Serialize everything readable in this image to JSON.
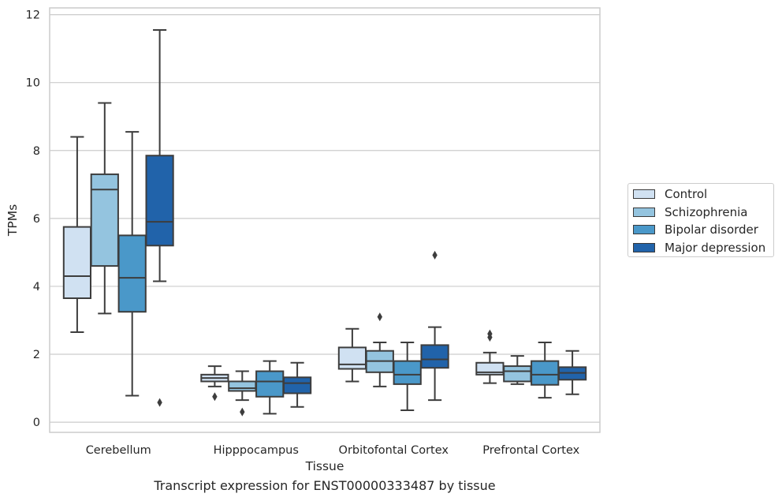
{
  "chart_data": {
    "type": "boxplot",
    "title": "",
    "caption": "Transcript expression for ENST00000333487 by tissue",
    "xlabel": "Tissue",
    "ylabel": "TPMs",
    "ylim": [
      -0.3,
      12.2
    ],
    "yticks": [
      "0",
      "2",
      "4",
      "6",
      "8",
      "10",
      "12"
    ],
    "categories": [
      "Cerebellum",
      "Hipppocampus",
      "Orbitofontal Cortex",
      "Prefrontal Cortex"
    ],
    "grid": true,
    "legend_position": "right",
    "series": [
      {
        "name": "Control",
        "color": "#d0e1f2",
        "boxes": [
          {
            "whisker_low": 2.65,
            "q1": 3.65,
            "median": 4.3,
            "q3": 5.75,
            "whisker_high": 8.4,
            "outliers": []
          },
          {
            "whisker_low": 1.05,
            "q1": 1.2,
            "median": 1.3,
            "q3": 1.4,
            "whisker_high": 1.65,
            "outliers": [
              0.75
            ]
          },
          {
            "whisker_low": 1.2,
            "q1": 1.57,
            "median": 1.7,
            "q3": 2.2,
            "whisker_high": 2.75,
            "outliers": []
          },
          {
            "whisker_low": 1.15,
            "q1": 1.4,
            "median": 1.47,
            "q3": 1.75,
            "whisker_high": 2.05,
            "outliers": [
              2.5,
              2.6
            ]
          }
        ]
      },
      {
        "name": "Schizophrenia",
        "color": "#94c4df",
        "boxes": [
          {
            "whisker_low": 3.2,
            "q1": 4.6,
            "median": 6.85,
            "q3": 7.3,
            "whisker_high": 9.4,
            "outliers": []
          },
          {
            "whisker_low": 0.65,
            "q1": 0.92,
            "median": 1.0,
            "q3": 1.2,
            "whisker_high": 1.5,
            "outliers": [
              0.3
            ]
          },
          {
            "whisker_low": 1.05,
            "q1": 1.47,
            "median": 1.8,
            "q3": 2.1,
            "whisker_high": 2.35,
            "outliers": [
              3.1
            ]
          },
          {
            "whisker_low": 1.12,
            "q1": 1.2,
            "median": 1.5,
            "q3": 1.65,
            "whisker_high": 1.95,
            "outliers": []
          }
        ]
      },
      {
        "name": "Bipolar disorder",
        "color": "#4a98c9",
        "boxes": [
          {
            "whisker_low": 0.78,
            "q1": 3.25,
            "median": 4.25,
            "q3": 5.5,
            "whisker_high": 8.55,
            "outliers": []
          },
          {
            "whisker_low": 0.25,
            "q1": 0.75,
            "median": 1.2,
            "q3": 1.5,
            "whisker_high": 1.8,
            "outliers": []
          },
          {
            "whisker_low": 0.35,
            "q1": 1.12,
            "median": 1.4,
            "q3": 1.8,
            "whisker_high": 2.35,
            "outliers": []
          },
          {
            "whisker_low": 0.72,
            "q1": 1.1,
            "median": 1.4,
            "q3": 1.8,
            "whisker_high": 2.35,
            "outliers": []
          }
        ]
      },
      {
        "name": "Major depression",
        "color": "#2163aa",
        "boxes": [
          {
            "whisker_low": 4.15,
            "q1": 5.2,
            "median": 5.9,
            "q3": 7.85,
            "whisker_high": 11.55,
            "outliers": [
              0.58
            ]
          },
          {
            "whisker_low": 0.45,
            "q1": 0.85,
            "median": 1.15,
            "q3": 1.32,
            "whisker_high": 1.75,
            "outliers": []
          },
          {
            "whisker_low": 0.65,
            "q1": 1.6,
            "median": 1.85,
            "q3": 2.27,
            "whisker_high": 2.8,
            "outliers": [
              4.92
            ]
          },
          {
            "whisker_low": 0.82,
            "q1": 1.25,
            "median": 1.45,
            "q3": 1.62,
            "whisker_high": 2.1,
            "outliers": []
          }
        ]
      }
    ]
  }
}
